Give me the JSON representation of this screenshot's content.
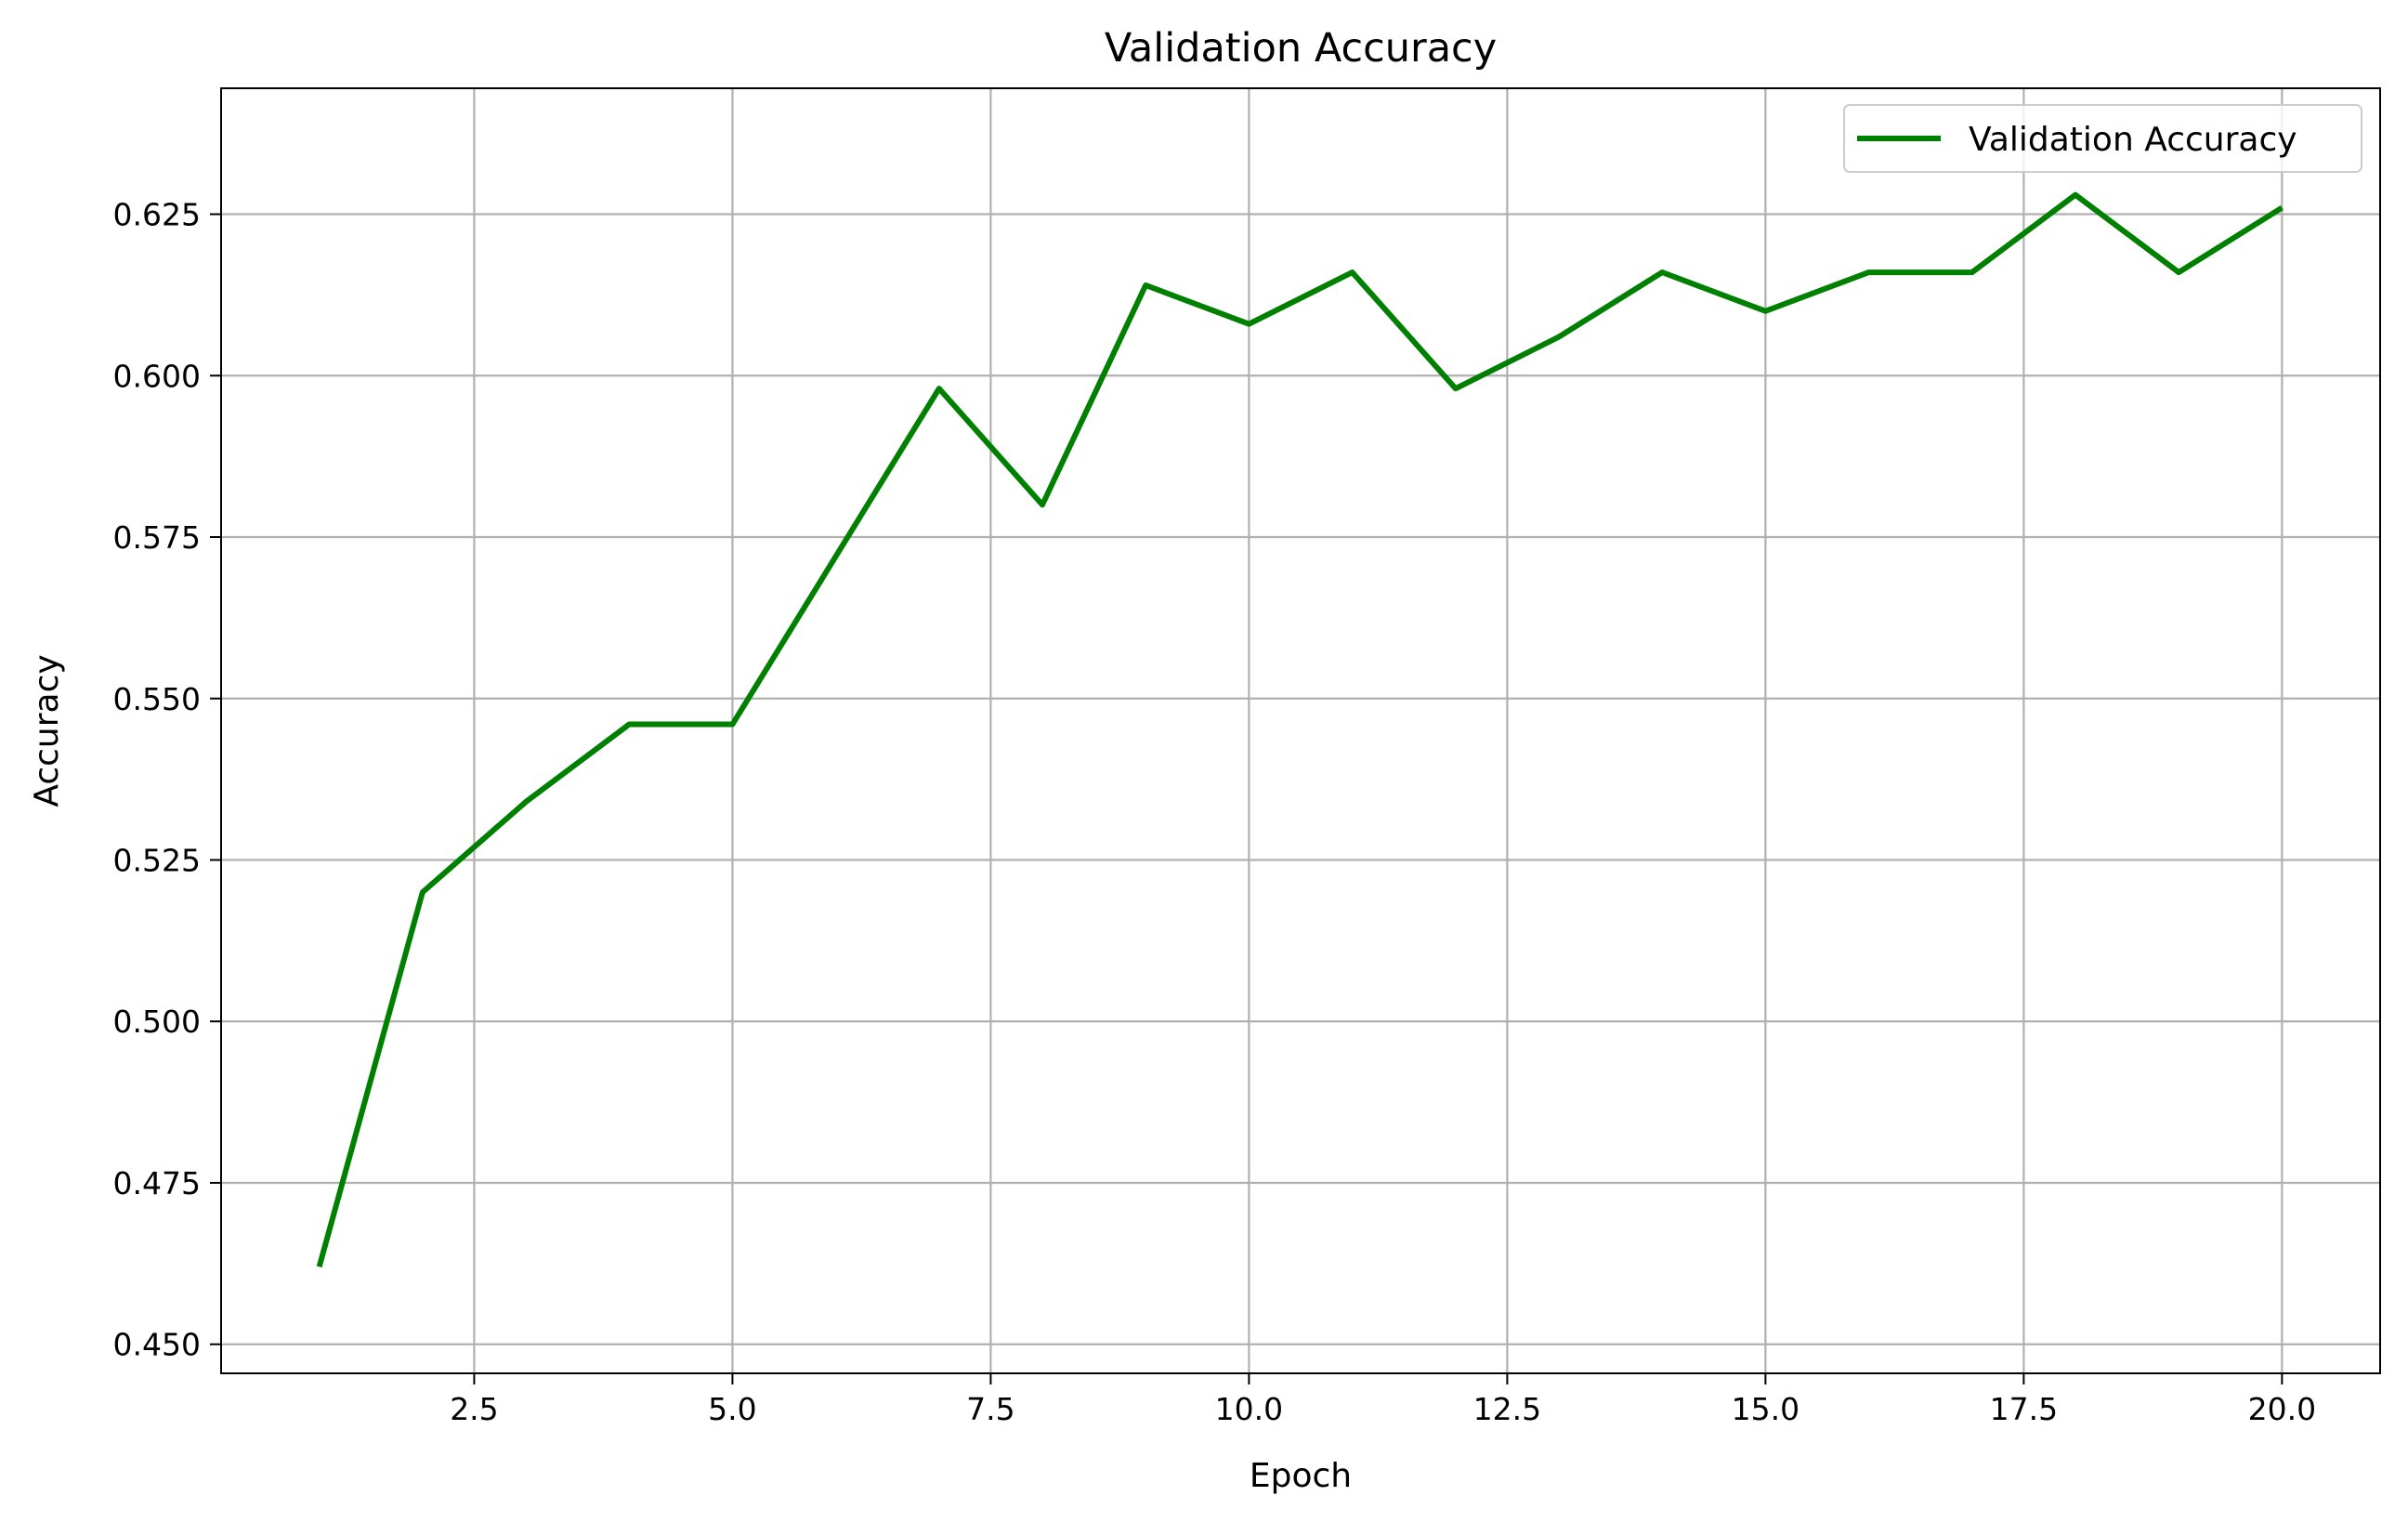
{
  "chart_data": {
    "type": "line",
    "title": "Validation Accuracy",
    "xlabel": "Epoch",
    "ylabel": "Accuracy",
    "xlim": [
      0.05,
      20.95
    ],
    "ylim": [
      0.4455,
      0.6445
    ],
    "xticks": [
      2.5,
      5.0,
      7.5,
      10.0,
      12.5,
      15.0,
      17.5,
      20.0
    ],
    "xtick_labels": [
      "2.5",
      "5.0",
      "7.5",
      "10.0",
      "12.5",
      "15.0",
      "17.5",
      "20.0"
    ],
    "yticks": [
      0.45,
      0.475,
      0.5,
      0.525,
      0.55,
      0.575,
      0.6,
      0.625
    ],
    "ytick_labels": [
      "0.450",
      "0.475",
      "0.500",
      "0.525",
      "0.550",
      "0.575",
      "0.600",
      "0.625"
    ],
    "grid": true,
    "legend_position": "top-right",
    "series": [
      {
        "name": "Validation Accuracy",
        "color": "#008000",
        "x": [
          1,
          2,
          3,
          4,
          5,
          6,
          7,
          8,
          9,
          10,
          11,
          12,
          13,
          14,
          15,
          16,
          17,
          18,
          19,
          20
        ],
        "values": [
          0.462,
          0.52,
          0.534,
          0.546,
          0.546,
          0.572,
          0.598,
          0.58,
          0.614,
          0.608,
          0.616,
          0.598,
          0.606,
          0.616,
          0.61,
          0.616,
          0.616,
          0.628,
          0.616,
          0.626
        ]
      }
    ],
    "colors": {
      "grid": "#b0b0b0",
      "axes": "#000000",
      "legend_border": "#cccccc"
    }
  }
}
